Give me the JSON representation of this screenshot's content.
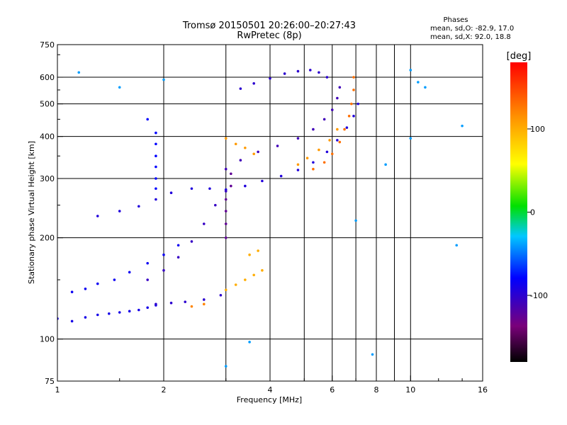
{
  "chart_data": {
    "type": "scatter",
    "title": "Tromsø 20150501 20:26:00–20:27:43",
    "subtitle": "RwPretec (8p)",
    "xlabel": "Frequency [MHz]",
    "ylabel": "Stationary phase Virtual Height [km]",
    "x_scale": "log",
    "y_scale": "log",
    "xlim": [
      1,
      16
    ],
    "ylim": [
      75,
      750
    ],
    "x_ticks": [
      1,
      2,
      4,
      6,
      8,
      10,
      16
    ],
    "y_ticks": [
      75,
      100,
      200,
      300,
      400,
      500,
      600,
      750
    ],
    "x_gridlines": [
      2,
      3,
      4,
      5,
      6,
      7,
      8,
      9,
      10
    ],
    "y_gridlines": [
      100,
      200,
      300,
      400,
      500,
      600
    ],
    "grid": true,
    "info": {
      "heading": "Phases",
      "line_o": "mean, sd,O: -82.9, 17.0",
      "line_x": "mean, sd,X:  92.0, 18.8"
    },
    "colorbar": {
      "label": "[deg]",
      "range": [
        -180,
        180
      ],
      "ticks": [
        100,
        0,
        -100
      ],
      "colormap": "rainbow: black-purple-blue-cyan-green-yellow-orange-red"
    },
    "series": [
      {
        "points": [
          [
            1.0,
            115
          ],
          [
            1.1,
            113
          ],
          [
            1.2,
            116
          ],
          [
            1.3,
            118
          ],
          [
            1.4,
            119
          ],
          [
            1.5,
            120
          ],
          [
            1.6,
            121
          ],
          [
            1.7,
            122
          ],
          [
            1.8,
            124
          ],
          [
            1.9,
            126
          ]
        ],
        "phase": -90
      },
      {
        "points": [
          [
            1.9,
            127
          ],
          [
            2.1,
            128
          ],
          [
            2.3,
            129
          ],
          [
            2.6,
            131
          ],
          [
            2.9,
            135
          ]
        ],
        "phase": -100
      },
      {
        "points": [
          [
            1.1,
            138
          ],
          [
            1.2,
            141
          ],
          [
            1.3,
            146
          ],
          [
            1.45,
            150
          ],
          [
            1.6,
            158
          ],
          [
            1.8,
            168
          ],
          [
            2.0,
            178
          ],
          [
            2.2,
            190
          ]
        ],
        "phase": -85
      },
      {
        "points": [
          [
            1.3,
            232
          ],
          [
            1.5,
            240
          ],
          [
            1.7,
            248
          ],
          [
            1.9,
            260
          ],
          [
            2.1,
            272
          ],
          [
            2.4,
            280
          ],
          [
            2.7,
            280
          ],
          [
            3.0,
            278
          ],
          [
            3.4,
            285
          ],
          [
            3.8,
            295
          ],
          [
            4.3,
            305
          ],
          [
            4.8,
            318
          ],
          [
            5.3,
            335
          ],
          [
            5.8,
            360
          ],
          [
            6.2,
            390
          ],
          [
            6.6,
            425
          ],
          [
            6.9,
            460
          ],
          [
            7.1,
            500
          ]
        ],
        "phase": -95
      },
      {
        "points": [
          [
            1.9,
            280
          ],
          [
            1.9,
            300
          ],
          [
            1.9,
            325
          ],
          [
            1.9,
            350
          ],
          [
            1.9,
            380
          ],
          [
            1.9,
            410
          ],
          [
            1.8,
            450
          ]
        ],
        "phase": -80
      },
      {
        "points": [
          [
            1.8,
            150
          ],
          [
            2.0,
            160
          ],
          [
            2.2,
            175
          ],
          [
            2.4,
            195
          ],
          [
            2.6,
            220
          ],
          [
            2.8,
            250
          ],
          [
            3.0,
            275
          ]
        ],
        "phase": -105
      },
      {
        "points": [
          [
            3.0,
            200
          ],
          [
            3.0,
            220
          ],
          [
            3.0,
            240
          ],
          [
            3.0,
            260
          ],
          [
            3.1,
            285
          ],
          [
            3.1,
            310
          ]
        ],
        "phase": -125
      },
      {
        "points": [
          [
            3.0,
            320
          ],
          [
            3.3,
            340
          ],
          [
            3.7,
            360
          ],
          [
            4.2,
            375
          ],
          [
            4.8,
            395
          ],
          [
            5.3,
            420
          ],
          [
            5.7,
            450
          ],
          [
            6.0,
            480
          ],
          [
            6.2,
            520
          ],
          [
            6.3,
            560
          ]
        ],
        "phase": -110
      },
      {
        "points": [
          [
            3.3,
            555
          ],
          [
            3.6,
            575
          ],
          [
            4.0,
            595
          ],
          [
            4.4,
            615
          ],
          [
            4.8,
            625
          ],
          [
            5.2,
            630
          ],
          [
            5.5,
            620
          ],
          [
            5.8,
            600
          ]
        ],
        "phase": -100
      },
      {
        "points": [
          [
            5.3,
            320
          ],
          [
            5.7,
            335
          ],
          [
            6.0,
            355
          ],
          [
            6.3,
            385
          ],
          [
            6.5,
            420
          ],
          [
            6.7,
            460
          ],
          [
            6.8,
            500
          ],
          [
            6.9,
            550
          ],
          [
            6.9,
            600
          ]
        ],
        "phase": 130
      },
      {
        "points": [
          [
            4.8,
            330
          ],
          [
            5.1,
            345
          ],
          [
            5.5,
            365
          ],
          [
            5.9,
            390
          ],
          [
            6.2,
            420
          ]
        ],
        "phase": 110
      },
      {
        "points": [
          [
            3.0,
            140
          ],
          [
            3.2,
            145
          ],
          [
            3.4,
            150
          ],
          [
            3.6,
            155
          ],
          [
            3.8,
            160
          ],
          [
            3.5,
            178
          ],
          [
            3.7,
            183
          ]
        ],
        "phase": 100
      },
      {
        "points": [
          [
            3.0,
            395
          ],
          [
            3.2,
            380
          ],
          [
            3.4,
            370
          ],
          [
            3.6,
            355
          ]
        ],
        "phase": 110
      },
      {
        "points": [
          [
            2.4,
            125
          ],
          [
            2.6,
            127
          ]
        ],
        "phase": 120
      },
      {
        "points": [
          [
            3.0,
            83
          ],
          [
            3.5,
            98
          ],
          [
            10.5,
            580
          ],
          [
            11.0,
            560
          ],
          [
            13.5,
            190
          ],
          [
            14.0,
            430
          ],
          [
            1.15,
            620
          ],
          [
            1.5,
            560
          ],
          [
            2.0,
            590
          ],
          [
            10.0,
            395
          ],
          [
            8.5,
            330
          ],
          [
            7.0,
            225
          ],
          [
            7.8,
            90
          ],
          [
            10.0,
            630
          ]
        ],
        "phase": -40
      }
    ]
  }
}
